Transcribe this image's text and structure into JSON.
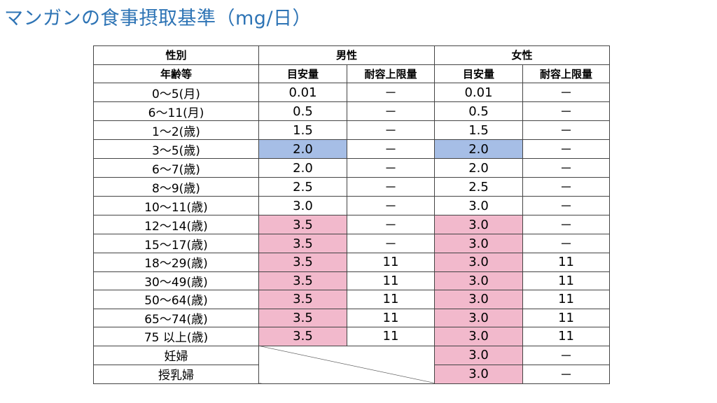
{
  "title": "マンガンの食事摂取基準（mg/日）",
  "header": {
    "col_sex": "性別",
    "col_age": "年齢等",
    "male": "男性",
    "female": "女性",
    "ai": "目安量",
    "ul": "耐容上限量"
  },
  "rows": [
    {
      "age": "0～5(月)",
      "m_ai": "0.01",
      "m_ul": "－",
      "f_ai": "0.01",
      "f_ul": "－"
    },
    {
      "age": "6～11(月)",
      "m_ai": "0.5",
      "m_ul": "－",
      "f_ai": "0.5",
      "f_ul": "－"
    },
    {
      "age": "1～2(歳)",
      "m_ai": "1.5",
      "m_ul": "－",
      "f_ai": "1.5",
      "f_ul": "－"
    },
    {
      "age": "3～5(歳)",
      "m_ai": "2.0",
      "m_ul": "－",
      "f_ai": "2.0",
      "f_ul": "－"
    },
    {
      "age": "6～7(歳)",
      "m_ai": "2.0",
      "m_ul": "－",
      "f_ai": "2.0",
      "f_ul": "－"
    },
    {
      "age": "8～9(歳)",
      "m_ai": "2.5",
      "m_ul": "－",
      "f_ai": "2.5",
      "f_ul": "－"
    },
    {
      "age": "10～11(歳)",
      "m_ai": "3.0",
      "m_ul": "－",
      "f_ai": "3.0",
      "f_ul": "－"
    },
    {
      "age": "12～14(歳)",
      "m_ai": "3.5",
      "m_ul": "－",
      "f_ai": "3.0",
      "f_ul": "－"
    },
    {
      "age": "15～17(歳)",
      "m_ai": "3.5",
      "m_ul": "－",
      "f_ai": "3.0",
      "f_ul": "－"
    },
    {
      "age": "18～29(歳)",
      "m_ai": "3.5",
      "m_ul": "11",
      "f_ai": "3.0",
      "f_ul": "11"
    },
    {
      "age": "30～49(歳)",
      "m_ai": "3.5",
      "m_ul": "11",
      "f_ai": "3.0",
      "f_ul": "11"
    },
    {
      "age": "50～64(歳)",
      "m_ai": "3.5",
      "m_ul": "11",
      "f_ai": "3.0",
      "f_ul": "11"
    },
    {
      "age": "65～74(歳)",
      "m_ai": "3.5",
      "m_ul": "11",
      "f_ai": "3.0",
      "f_ul": "11"
    },
    {
      "age": "75 以上(歳)",
      "m_ai": "3.5",
      "m_ul": "11",
      "f_ai": "3.0",
      "f_ul": "11"
    }
  ],
  "special_rows": [
    {
      "age": "妊婦",
      "f_ai": "3.0",
      "f_ul": "－"
    },
    {
      "age": "授乳婦",
      "f_ai": "3.0",
      "f_ul": "－"
    }
  ],
  "colors": {
    "title": "#2e74b5",
    "highlight_blue": "#a6bee6",
    "highlight_pink": "#f2b9cc"
  }
}
